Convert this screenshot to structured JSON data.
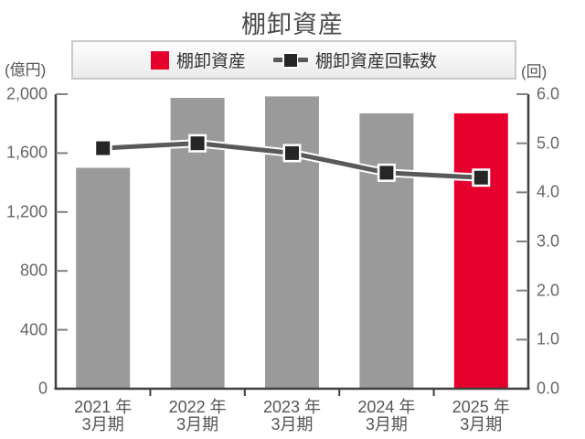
{
  "title": "棚卸資産",
  "legend": {
    "bar_label": "棚卸資産",
    "line_label": "棚卸資産回転数"
  },
  "chart_data": {
    "type": "bar",
    "subtype": "combo-bar-line",
    "title": "棚卸資産",
    "categories": [
      "2021年3月期",
      "2022年3月期",
      "2023年3月期",
      "2024年3月期",
      "2025年3月期"
    ],
    "category_labels": [
      [
        "2021 年",
        "3月期"
      ],
      [
        "2022 年",
        "3月期"
      ],
      [
        "2023 年",
        "3月期"
      ],
      [
        "2024 年",
        "3月期"
      ],
      [
        "2025 年",
        "3月期"
      ]
    ],
    "series": [
      {
        "name": "棚卸資産",
        "type": "bar",
        "axis": "left",
        "unit": "億円",
        "values": [
          1500,
          1975,
          1985,
          1870,
          1870
        ],
        "bar_colors": [
          "#9a9a9a",
          "#9a9a9a",
          "#9a9a9a",
          "#9a9a9a",
          "#e6002d"
        ]
      },
      {
        "name": "棚卸資産回転数",
        "type": "line",
        "axis": "right",
        "unit": "回",
        "values": [
          4.9,
          5.0,
          4.8,
          4.4,
          4.3
        ],
        "color": "#595959",
        "marker": "square",
        "marker_color": "#262626"
      }
    ],
    "left_axis": {
      "label": "(億円)",
      "min": 0,
      "max": 2000,
      "tick_step": 400,
      "tick_labels": [
        "2,000",
        "1,600",
        "1,200",
        "800",
        "400",
        "0"
      ]
    },
    "right_axis": {
      "label": "(回)",
      "min": 0,
      "max": 6,
      "tick_step": 1,
      "tick_labels": [
        "6.0",
        "5.0",
        "4.0",
        "3.0",
        "2.0",
        "1.0",
        "0.0"
      ]
    },
    "legend_position": "top",
    "grid": false
  },
  "colors": {
    "bar": "#9a9a9a",
    "accent": "#e6002d",
    "line": "#595959",
    "marker": "#262626",
    "axis": "#3f3f3f",
    "inner_tick": "#808080",
    "legend_border": "#c9c9c9"
  }
}
